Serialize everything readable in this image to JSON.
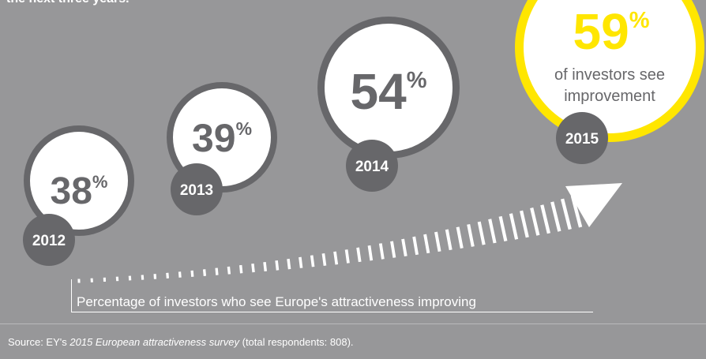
{
  "intro_text": "the next three years.",
  "chart_data": {
    "type": "bubble",
    "categories": [
      "2012",
      "2013",
      "2014",
      "2015"
    ],
    "values": [
      38,
      39,
      54,
      59
    ],
    "unit": "%",
    "highlight_label": "of investors see improvement",
    "highlight_lines": [
      "of investors see",
      "improvement"
    ],
    "caption": "Percentage of investors who see Europe's attractiveness improving",
    "title": "",
    "xlabel": "",
    "ylabel": ""
  },
  "source": {
    "prefix": "Source: EY's ",
    "title": "2015 European attractiveness survey",
    "suffix": " (total respondents: 808)."
  },
  "colors": {
    "background": "#979799",
    "circle_fill": "#ffffff",
    "circle_ring": "#67676a",
    "highlight_ring": "#ffe600",
    "highlight_text": "#ffe600",
    "year_badge": "#67676a",
    "value_text": "#67676a",
    "year_text": "#ffffff",
    "arrow": "#ffffff"
  }
}
